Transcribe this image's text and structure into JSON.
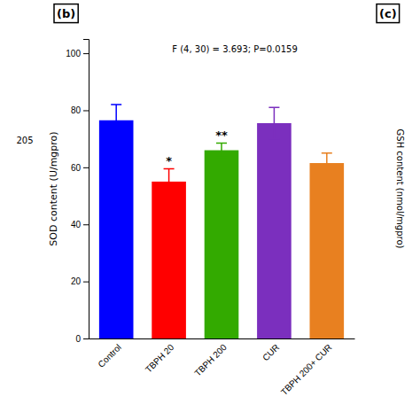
{
  "chart_data": {
    "type": "bar",
    "categories": [
      "Control",
      "TBPH 20",
      "TBPH 200",
      "CUR",
      "TBPH 200+ CUR"
    ],
    "values": [
      76.5,
      55.0,
      66.0,
      75.5,
      61.5
    ],
    "errors": [
      5.5,
      4.5,
      2.5,
      5.5,
      3.5
    ],
    "colors": [
      "#0000FF",
      "#FF0000",
      "#33AA00",
      "#7B2FBE",
      "#E88020"
    ],
    "ylabel": "SOD content (U/mgpro)",
    "ylim": [
      0,
      105
    ],
    "yticks": [
      0,
      20,
      40,
      60,
      80,
      100
    ],
    "significance": [
      null,
      "*",
      "**",
      null,
      null
    ],
    "annotations": [
      "F (4, 30) = 3.693; P=0.0159",
      "(b)",
      "(c)",
      "205",
      "GSH content (nmol/mgpro)"
    ]
  }
}
